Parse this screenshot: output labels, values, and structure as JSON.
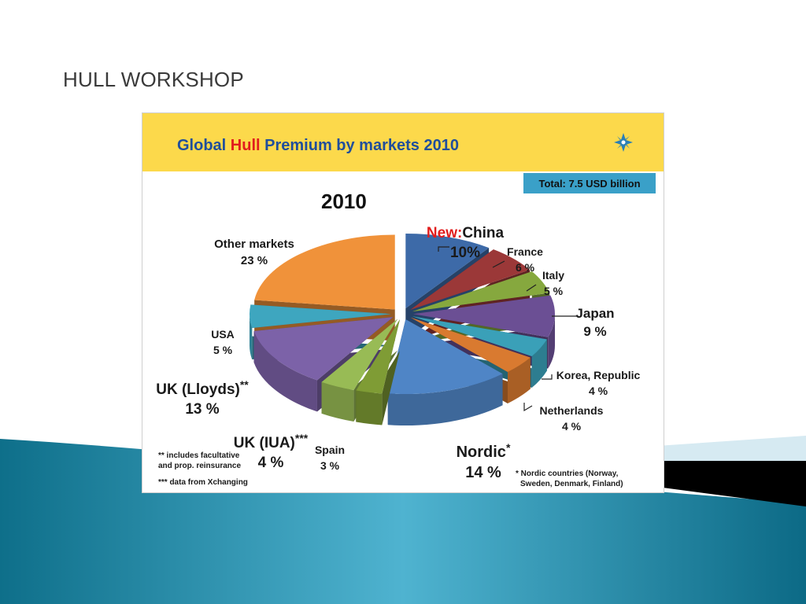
{
  "slide": {
    "title": "HULL WORKSHOP"
  },
  "chart_data": {
    "type": "pie",
    "title_parts": [
      "Global ",
      "Hull",
      " Premium by markets 2010"
    ],
    "total_label": "Total: 7.5 USD billion",
    "year_label": "2010",
    "colors": {
      "header_bg": "#fcd94b",
      "title_blue": "#1f4e9c",
      "title_red": "#e11d1d",
      "total_bg": "#3aa0c8"
    },
    "slices": [
      {
        "key": "china",
        "value": 10,
        "color": "#3d6aa8",
        "label_prefix": "New:",
        "label": "China",
        "value_label": "10%"
      },
      {
        "key": "france",
        "value": 6,
        "color": "#9b3838",
        "label": "France",
        "value_label": "6 %"
      },
      {
        "key": "italy",
        "value": 5,
        "color": "#86a83e",
        "label": "Italy",
        "value_label": "5 %"
      },
      {
        "key": "japan",
        "value": 9,
        "color": "#6b4f94",
        "label": "Japan",
        "value_label": "9 %"
      },
      {
        "key": "korea",
        "value": 4,
        "color": "#3aa0b8",
        "label": "Korea, Republic",
        "value_label": "4 %"
      },
      {
        "key": "netherlands",
        "value": 4,
        "color": "#d97a30",
        "label": "Netherlands",
        "value_label": "4 %"
      },
      {
        "key": "nordic",
        "value": 14,
        "color": "#4f85c6",
        "label": "Nordic",
        "label_suffix": "*",
        "value_label": "14 %"
      },
      {
        "key": "spain",
        "value": 3,
        "color": "#7f9c35",
        "label": "Spain",
        "value_label": "3 %"
      },
      {
        "key": "uk_iua",
        "value": 4,
        "color": "#98bb55",
        "label": "UK (IUA)",
        "label_suffix": "***",
        "value_label": "4 %"
      },
      {
        "key": "uk_lloyds",
        "value": 13,
        "color": "#7c62a8",
        "label": "UK (Lloyds)",
        "label_suffix": "**",
        "value_label": "13 %"
      },
      {
        "key": "usa",
        "value": 5,
        "color": "#3ea6bf",
        "label": "USA",
        "value_label": "5 %"
      },
      {
        "key": "other",
        "value": 23,
        "color": "#f0923a",
        "label": "Other markets",
        "value_label": "23 %"
      }
    ],
    "footnotes": {
      "facultative_line1": "** includes facultative",
      "facultative_line2": "and prop. reinsurance",
      "xchanging": "*** data from Xchanging",
      "nordic_line1": "* Nordic countries (Norway,",
      "nordic_line2": "Sweden, Denmark, Finland)"
    }
  }
}
